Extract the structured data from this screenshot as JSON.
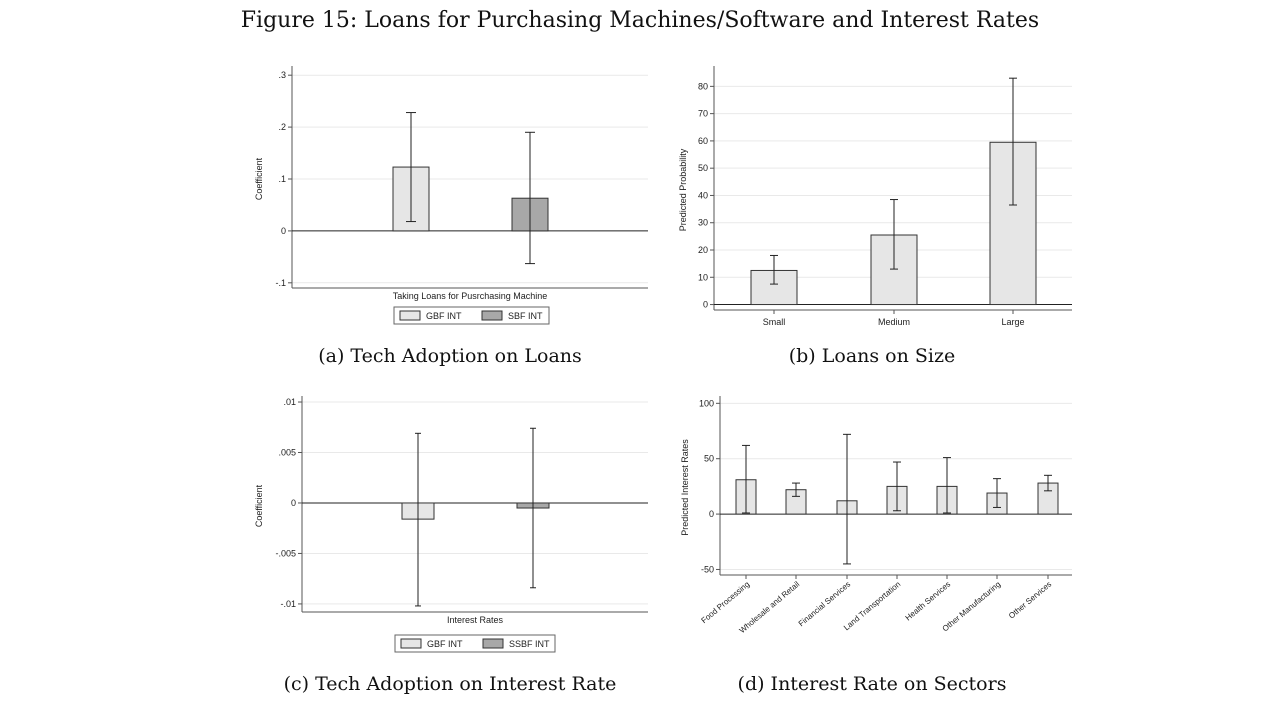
{
  "figure_title": "Figure 15: Loans for Purchasing Machines/Software and Interest Rates",
  "colors": {
    "light_bar": "#e6e6e6",
    "dark_bar": "#a8a8a8",
    "stroke": "#333333",
    "grid": "#e9e9e9"
  },
  "chart_data": [
    {
      "id": "a",
      "type": "bar",
      "caption": "(a) Tech Adoption on Loans",
      "ylabel": "Coefficient",
      "xlabel": "Taking Loans for Pusrchasing Machine",
      "ylim": [
        -0.11,
        0.31
      ],
      "yticks": [
        0.3,
        0.2,
        0.1,
        0,
        -0.1
      ],
      "ytick_labels": [
        ".3",
        ".2",
        ".1",
        "0",
        "-.1"
      ],
      "grid": true,
      "legend_position": "bottom",
      "series": [
        {
          "name": "GBF INT",
          "value": 0.123,
          "ci": [
            0.018,
            0.228
          ],
          "color": "#e6e6e6"
        },
        {
          "name": "SBF INT",
          "value": 0.063,
          "ci": [
            -0.063,
            0.19
          ],
          "color": "#a8a8a8"
        }
      ]
    },
    {
      "id": "b",
      "type": "bar",
      "caption": "(b) Loans on Size",
      "ylabel": "Predicted Probability",
      "ylim": [
        -2,
        86
      ],
      "yticks": [
        80,
        70,
        60,
        50,
        40,
        30,
        20,
        10,
        0
      ],
      "ytick_labels": [
        "80",
        "70",
        "60",
        "50",
        "40",
        "30",
        "20",
        "10",
        "0"
      ],
      "grid": true,
      "categories": [
        "Small",
        "Medium",
        "Large"
      ],
      "values": [
        12.5,
        25.5,
        59.5
      ],
      "ci": [
        [
          7.5,
          18
        ],
        [
          13,
          38.5
        ],
        [
          36.5,
          83
        ]
      ]
    },
    {
      "id": "c",
      "type": "bar",
      "caption": "(c) Tech Adoption on Interest Rate",
      "ylabel": "Coefficient",
      "xlabel": "Interest Rates",
      "ylim": [
        -0.0108,
        0.0102
      ],
      "yticks": [
        0.01,
        0.005,
        0,
        -0.005,
        -0.01
      ],
      "ytick_labels": [
        ".01",
        ".005",
        "0",
        "-.005",
        "-.01"
      ],
      "grid": true,
      "legend_position": "bottom",
      "series": [
        {
          "name": "GBF INT",
          "value": -0.0016,
          "ci": [
            -0.0102,
            0.0069
          ],
          "color": "#e6e6e6"
        },
        {
          "name": "SSBF INT",
          "value": -0.0005,
          "ci": [
            -0.0084,
            0.0074
          ],
          "color": "#a8a8a8"
        }
      ]
    },
    {
      "id": "d",
      "type": "bar",
      "caption": "(d) Interest Rate on Sectors",
      "ylabel": "Predicted Interest Rates",
      "ylim": [
        -55,
        103
      ],
      "yticks": [
        100,
        50,
        0,
        -50
      ],
      "ytick_labels": [
        "100",
        "50",
        "0",
        "-50"
      ],
      "grid": true,
      "categories": [
        "Food Processing",
        "Wholesale and Retail",
        "Financial Services",
        "Land Transportation",
        "Health Services",
        "Other Manufacturing",
        "Other Services"
      ],
      "values": [
        31,
        22,
        12,
        25,
        25,
        19,
        28
      ],
      "ci": [
        [
          1,
          62
        ],
        [
          16,
          28
        ],
        [
          -45,
          72
        ],
        [
          3,
          47
        ],
        [
          1,
          51
        ],
        [
          6,
          32
        ],
        [
          21,
          35
        ]
      ]
    }
  ]
}
